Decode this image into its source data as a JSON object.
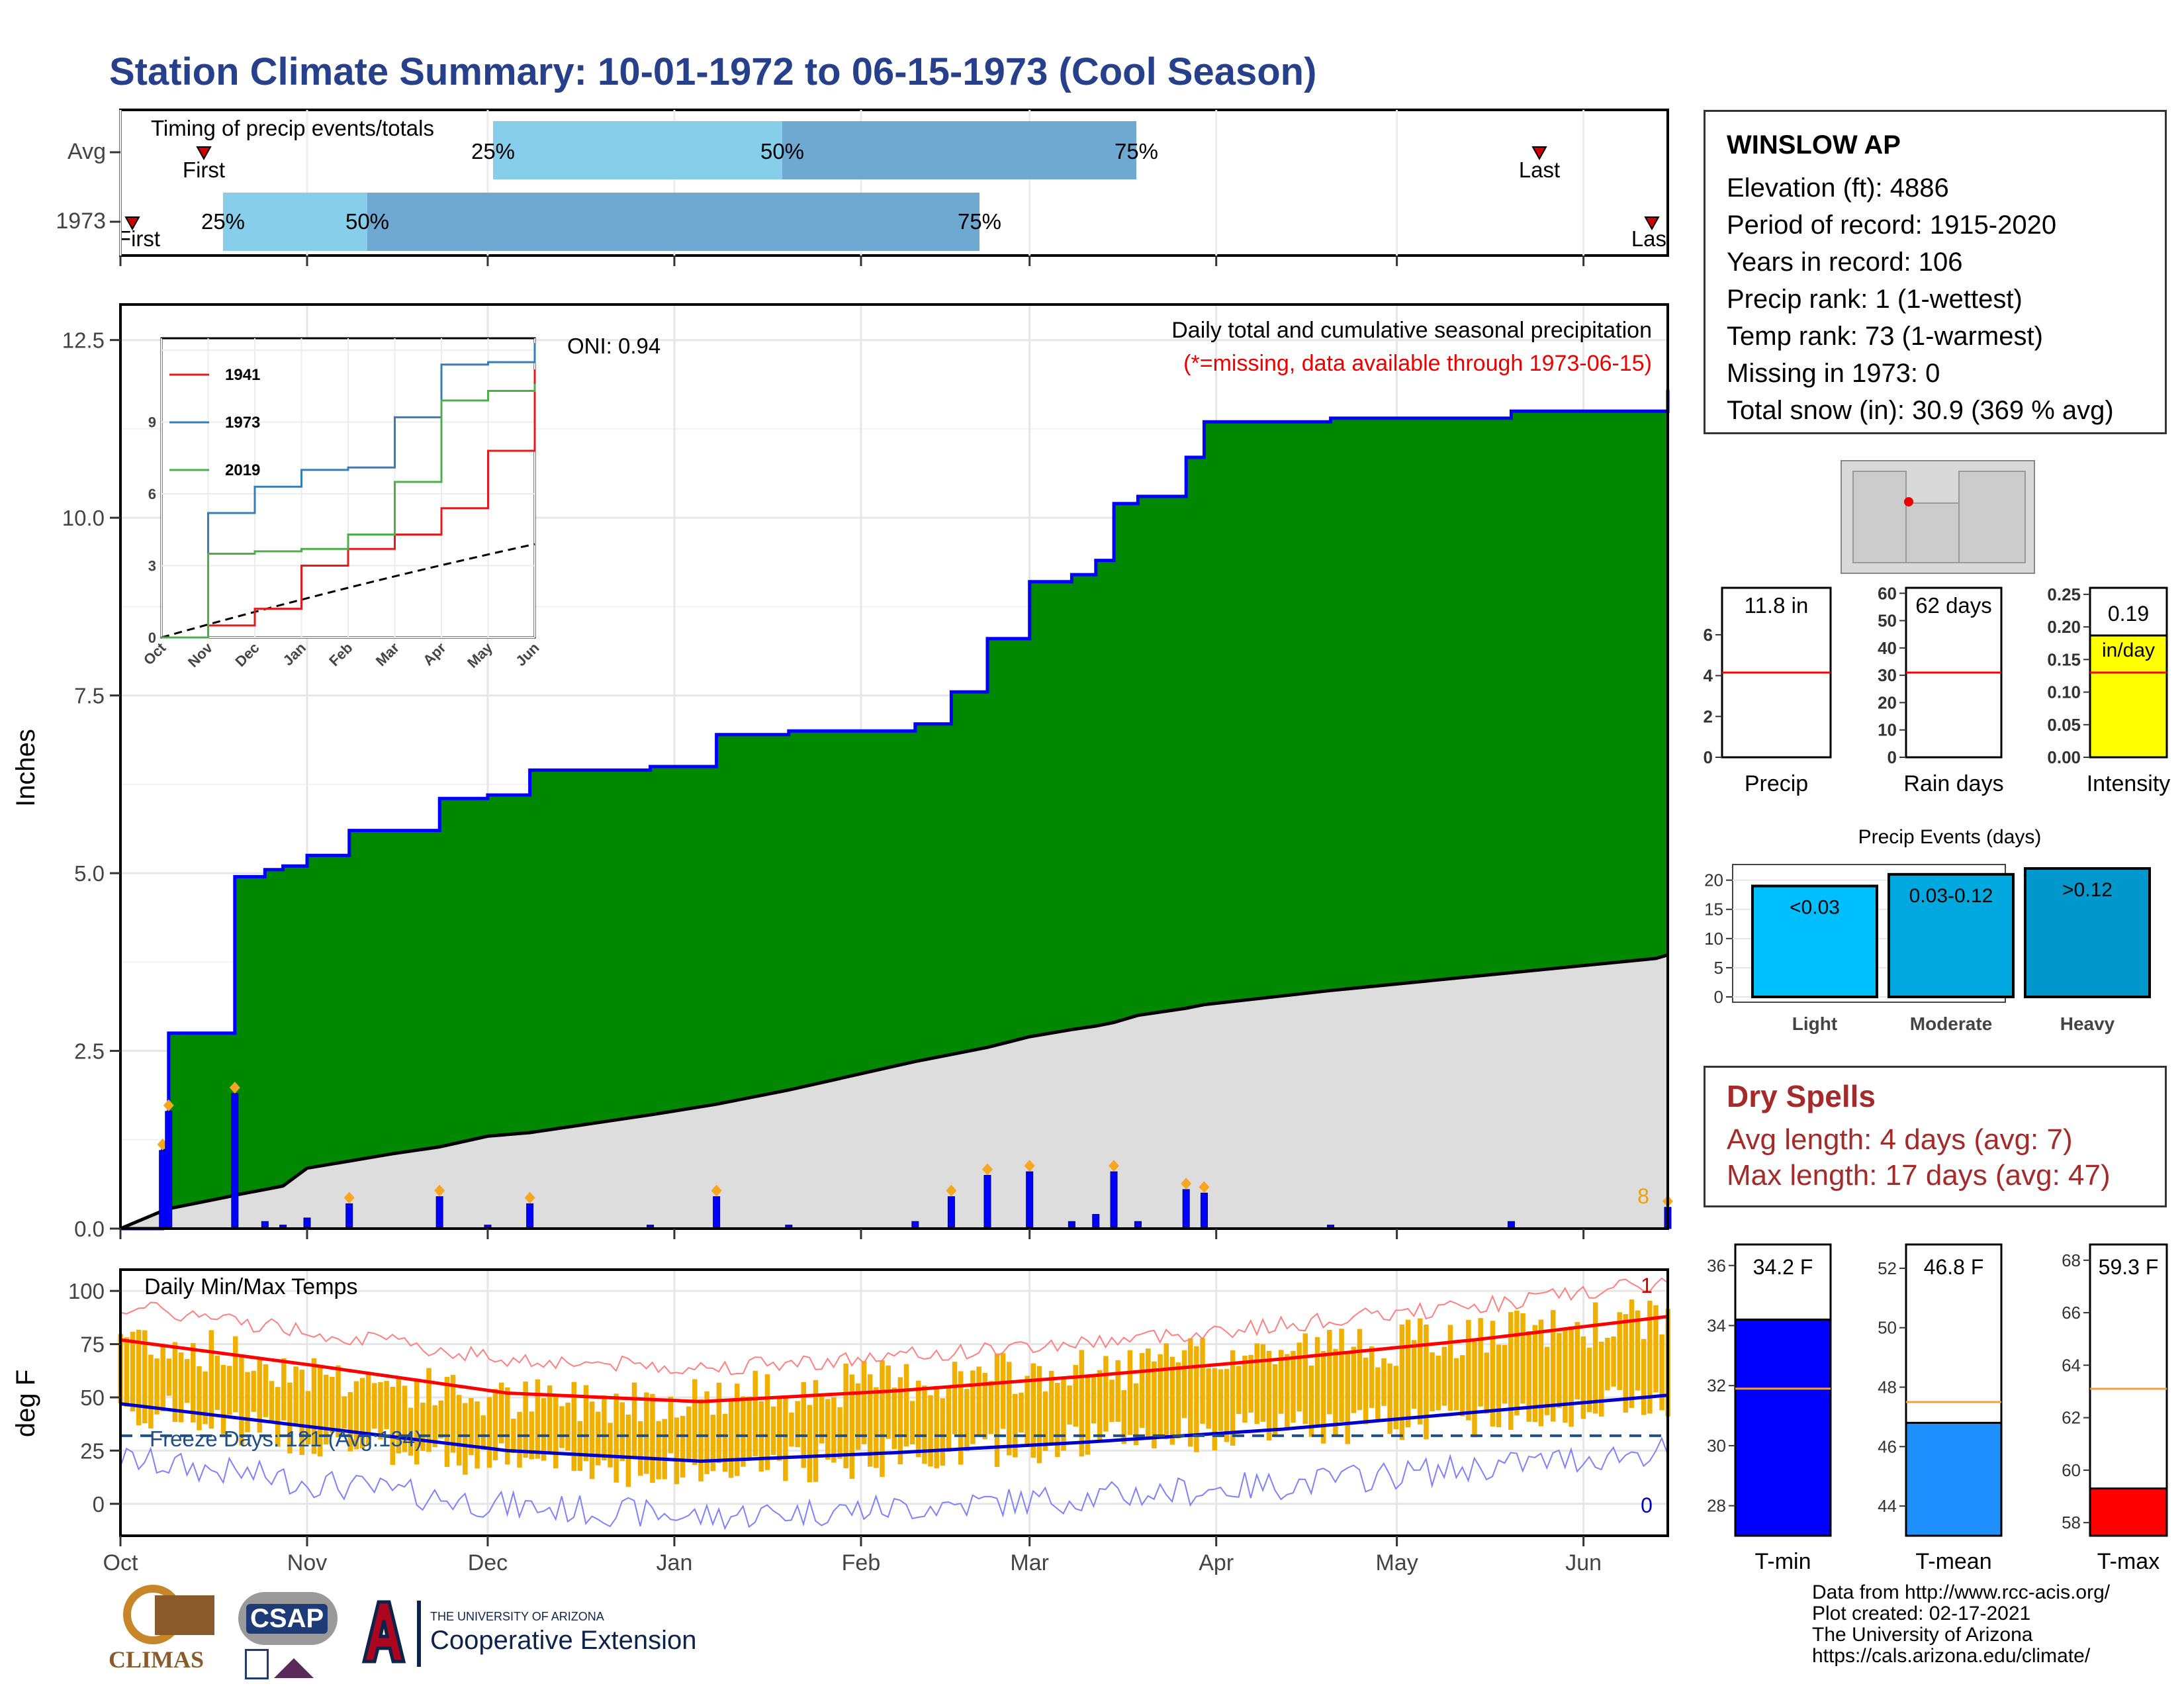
{
  "title": "Station Climate Summary: 10-01-1972 to 06-15-1973 (Cool Season)",
  "colors": {
    "title": "#27408b",
    "cumulative_fill": "#008800",
    "cumulative_line": "#0000ff",
    "normal_fill": "#dddddd",
    "daily_bar": "#0000ff",
    "light_blue": "#87ceeb",
    "mid_blue": "#6fa8d0",
    "temp_bar": "#f0b000",
    "tmax_line": "#ff0000",
    "tmin_line": "#0000cc",
    "record_max": "#ff8080",
    "record_min": "#8080ff",
    "dry_spell": "#a52a2a"
  },
  "timing_panel": {
    "label": "Timing of precip events/totals",
    "row_labels": [
      "Avg",
      "1973"
    ],
    "markers": {
      "avg": {
        "first": "First",
        "last": "Last",
        "p25": "25%",
        "p50": "50%",
        "p75": "75%"
      },
      "y1973": {
        "first": "First",
        "last": "Last",
        "p25": "25%",
        "p50": "50%",
        "p75": "75%"
      }
    }
  },
  "main_panel": {
    "ylabel": "Inches",
    "yticks": [
      "0.0",
      "2.5",
      "5.0",
      "7.5",
      "10.0",
      "12.5"
    ],
    "header": "Daily total and cumulative seasonal precipitation",
    "subheader": "(*=missing, data available through 1973-06-15)",
    "oni": "ONI: 0.94",
    "corner_count": "8"
  },
  "inset": {
    "yticks": [
      "0",
      "3",
      "6",
      "9"
    ],
    "xticks": [
      "Oct",
      "Nov",
      "Dec",
      "Jan",
      "Feb",
      "Mar",
      "Apr",
      "May",
      "Jun"
    ],
    "legend": [
      "1941",
      "1973",
      "2019"
    ]
  },
  "temp_panel": {
    "ylabel": "deg F",
    "title": "Daily Min/Max Temps",
    "yticks": [
      "0",
      "25",
      "50",
      "75",
      "100"
    ],
    "freeze": "Freeze Days: 121 (Avg:134)",
    "corner_top": "1",
    "corner_bottom": "0"
  },
  "months": [
    "Oct",
    "Nov",
    "Dec",
    "Jan",
    "Feb",
    "Mar",
    "Apr",
    "May",
    "Jun"
  ],
  "station": {
    "name": "WINSLOW AP",
    "lines": [
      "Elevation (ft): 4886",
      "Period of record: 1915-2020",
      "Years in record: 106",
      "Precip rank: 1 (1-wettest)",
      "Temp rank: 73 (1-warmest)",
      "Missing in 1973: 0",
      "Total snow (in): 30.9 (369 % avg)"
    ]
  },
  "mini_panels": {
    "precip": {
      "label": "Precip",
      "value": "11.8 in",
      "yticks": [
        "0",
        "2",
        "4",
        "6"
      ]
    },
    "rain_days": {
      "label": "Rain days",
      "value": "62 days",
      "yticks": [
        "0",
        "10",
        "20",
        "30",
        "40",
        "50",
        "60"
      ]
    },
    "intensity": {
      "label": "Intensity",
      "value": "0.19",
      "unit": "in/day",
      "yticks": [
        "0.00",
        "0.05",
        "0.10",
        "0.15",
        "0.20",
        "0.25"
      ]
    }
  },
  "precip_events": {
    "title": "Precip Events (days)",
    "yticks": [
      "0",
      "5",
      "10",
      "15",
      "20"
    ],
    "categories": [
      "Light",
      "Moderate",
      "Heavy"
    ],
    "bar_labels": [
      "<0.03",
      "0.03-0.12",
      ">0.12"
    ],
    "values": [
      19,
      21,
      22
    ]
  },
  "dry_spells": {
    "title": "Dry Spells",
    "lines": [
      "Avg length: 4 days (avg: 7)",
      "Max length: 17 days (avg: 47)"
    ]
  },
  "temp_summary": {
    "tmin": {
      "label": "T-min",
      "value": "34.2 F",
      "yticks": [
        "28",
        "30",
        "32",
        "34",
        "36"
      ]
    },
    "tmean": {
      "label": "T-mean",
      "value": "46.8 F",
      "yticks": [
        "44",
        "46",
        "48",
        "50",
        "52"
      ]
    },
    "tmax": {
      "label": "T-max",
      "value": "59.3 F",
      "yticks": [
        "58",
        "60",
        "62",
        "64",
        "66",
        "68"
      ]
    }
  },
  "credits": [
    "Data from http://www.rcc-acis.org/",
    "Plot created: 02-17-2021",
    "The University of Arizona",
    "https://cals.arizona.edu/climate/"
  ],
  "logos": {
    "climas": "CLIMAS",
    "csap": "CSAP",
    "ua_small": "THE UNIVERSITY OF ARIZONA",
    "ua_big": "Cooperative Extension"
  },
  "chart_data": [
    {
      "type": "line",
      "title": "Daily total and cumulative seasonal precipitation",
      "ylabel": "Inches",
      "ylim": [
        0,
        13
      ],
      "x": [
        "1972-10-01",
        "1972-10-08",
        "1972-10-09",
        "1972-10-19",
        "1972-10-20",
        "1972-10-25",
        "1972-10-28",
        "1972-11-01",
        "1972-11-08",
        "1972-11-15",
        "1972-11-23",
        "1972-12-01",
        "1972-12-08",
        "1972-12-28",
        "1973-01-08",
        "1973-01-20",
        "1973-02-10",
        "1973-02-16",
        "1973-02-22",
        "1973-03-01",
        "1973-03-08",
        "1973-03-12",
        "1973-03-15",
        "1973-03-19",
        "1973-03-27",
        "1973-03-30",
        "1973-04-20",
        "1973-05-20",
        "1973-06-13",
        "1973-06-15"
      ],
      "series": [
        {
          "name": "1973",
          "values": [
            0.0,
            1.1,
            2.75,
            2.75,
            4.95,
            5.05,
            5.1,
            5.25,
            5.6,
            5.6,
            6.05,
            6.1,
            6.45,
            6.5,
            6.95,
            7.0,
            7.1,
            7.55,
            8.3,
            9.1,
            9.2,
            9.4,
            10.2,
            10.3,
            10.85,
            11.35,
            11.4,
            11.5,
            11.5,
            11.8
          ]
        },
        {
          "name": "Normal",
          "values": [
            0.0,
            0.25,
            0.28,
            0.45,
            0.47,
            0.55,
            0.6,
            0.85,
            0.95,
            1.05,
            1.15,
            1.3,
            1.35,
            1.6,
            1.75,
            1.95,
            2.35,
            2.45,
            2.55,
            2.7,
            2.8,
            2.85,
            2.9,
            3.0,
            3.1,
            3.15,
            3.35,
            3.6,
            3.8,
            3.85
          ]
        }
      ]
    },
    {
      "type": "line",
      "title": "Cumulative precipitation comparison",
      "x": [
        "Oct",
        "Nov",
        "Dec",
        "Jan",
        "Feb",
        "Mar",
        "Apr",
        "May",
        "Jun"
      ],
      "ylim": [
        0,
        12.5
      ],
      "series": [
        {
          "name": "1941",
          "values": [
            0.0,
            0.5,
            1.2,
            3.0,
            3.7,
            4.3,
            5.4,
            7.8,
            11.2
          ]
        },
        {
          "name": "1973",
          "values": [
            0.0,
            5.2,
            6.3,
            7.0,
            7.1,
            9.2,
            11.4,
            11.5,
            12.3
          ]
        },
        {
          "name": "2019",
          "values": [
            0.0,
            3.5,
            3.6,
            3.7,
            4.3,
            6.5,
            9.9,
            10.3,
            10.6
          ]
        }
      ]
    },
    {
      "type": "line",
      "title": "Daily Min/Max Temps",
      "ylabel": "deg F",
      "ylim": [
        -15,
        110
      ],
      "x": [
        "Oct",
        "Nov",
        "Dec",
        "Jan",
        "Feb",
        "Mar",
        "Apr",
        "May",
        "Jun"
      ],
      "series": [
        {
          "name": "Normal max",
          "values": [
            77,
            65,
            52,
            48,
            53,
            60,
            68,
            77,
            88
          ]
        },
        {
          "name": "Normal min",
          "values": [
            47,
            36,
            25,
            20,
            24,
            29,
            35,
            43,
            51
          ]
        },
        {
          "name": "Daily max",
          "values": [
            80,
            62,
            48,
            50,
            58,
            62,
            72,
            78,
            88
          ]
        },
        {
          "name": "Daily min",
          "values": [
            46,
            30,
            20,
            15,
            22,
            30,
            35,
            40,
            50
          ]
        }
      ]
    },
    {
      "type": "bar",
      "title": "Precip Events (days)",
      "categories": [
        "Light",
        "Moderate",
        "Heavy"
      ],
      "values": [
        19,
        21,
        22
      ],
      "ylim": [
        0,
        22
      ]
    },
    {
      "type": "bar",
      "categories": [
        "Precip",
        "Rain days",
        "Intensity"
      ],
      "values": [
        11.8,
        62,
        0.19
      ],
      "series": [
        {
          "values": [
            4.0,
            30,
            0.13
          ]
        }
      ]
    },
    {
      "type": "bar",
      "categories": [
        "T-min",
        "T-mean",
        "T-max"
      ],
      "values": [
        34.2,
        46.8,
        59.3
      ],
      "series": [
        {
          "values": [
            31.9,
            47.5,
            63.1
          ]
        }
      ]
    }
  ]
}
